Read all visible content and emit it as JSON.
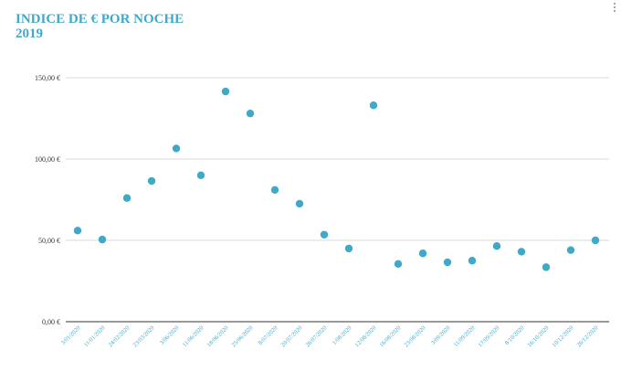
{
  "title_line1": "INDICE DE € POR NOCHE",
  "title_line2": "2019",
  "chart_data": {
    "type": "scatter",
    "title": "INDICE DE € POR NOCHE 2019",
    "xlabel": "",
    "ylabel": "",
    "ylim": [
      0,
      150
    ],
    "y_ticks": [
      "0,00 €",
      "50,00 €",
      "100,00 €",
      "150,00 €"
    ],
    "y_tick_values": [
      0,
      50,
      100,
      150
    ],
    "grid": true,
    "legend": "none",
    "point_color": "#3fa9c9",
    "categories": [
      "3/01/2020",
      "11/01/2020",
      "24/02/2020",
      "23/03/2020",
      "3/06/2020",
      "11/06/2020",
      "18/06/2020",
      "25/06/2020",
      "8/07/2020",
      "20/07/2020",
      "26/07/2020",
      "1/08/2020",
      "12/08/2020",
      "16/08/2020",
      "23/08/2020",
      "3/09/2020",
      "11/09/2020",
      "17/09/2020",
      "8/10/2020",
      "16/10/2020",
      "10/12/2020",
      "26/12/2020"
    ],
    "values": [
      56,
      50.5,
      76,
      86.5,
      106.5,
      90,
      141.5,
      128,
      81,
      72.5,
      53.5,
      45,
      133,
      35.5,
      42,
      36.5,
      37.5,
      46.5,
      43,
      33.5,
      44,
      50
    ]
  }
}
